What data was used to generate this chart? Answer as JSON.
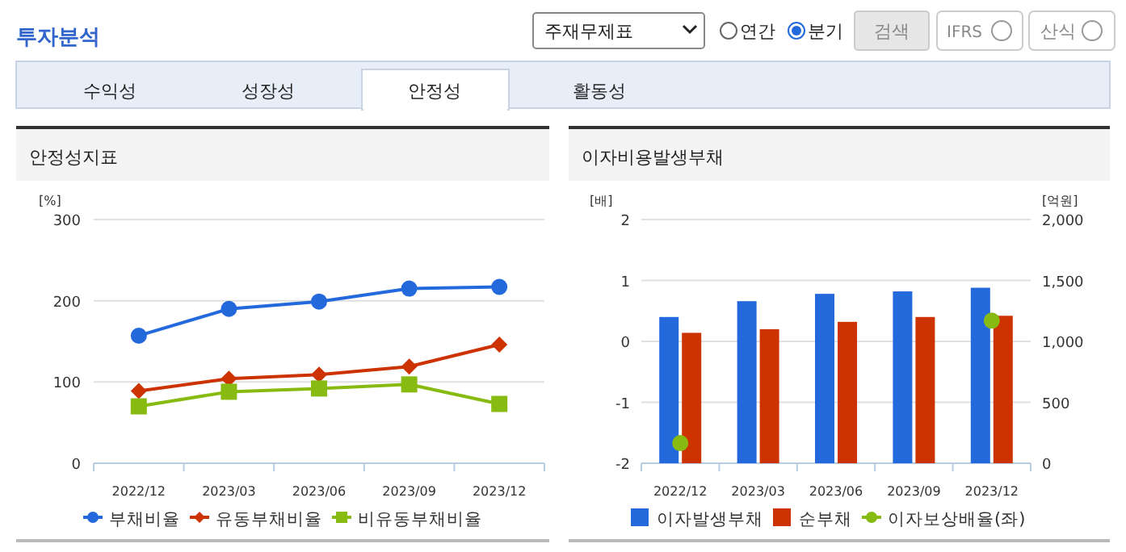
{
  "chart_data": [
    {
      "type": "line",
      "title": "안정성지표",
      "ylabel": "[%]",
      "categories": [
        "2022/12",
        "2023/03",
        "2023/06",
        "2023/09",
        "2023/12"
      ],
      "series": [
        {
          "name": "부채비율",
          "color": "#2469dc",
          "marker": "circle",
          "values": [
            157,
            190,
            199,
            215,
            217
          ]
        },
        {
          "name": "유동부채비율",
          "color": "#cc3300",
          "marker": "diamond",
          "values": [
            89,
            104,
            109,
            119,
            146
          ]
        },
        {
          "name": "비유동부채비율",
          "color": "#88bb11",
          "marker": "square",
          "values": [
            70,
            88,
            92,
            97,
            73
          ]
        }
      ],
      "ylim": [
        0,
        300
      ],
      "yticks": [
        0,
        100,
        200,
        300
      ],
      "grid": "y",
      "legend": "bottom",
      "annotations": [
        "투자분석",
        "주재무제표",
        "연간",
        "분기",
        "검색",
        "IFRS",
        "산식",
        "수익성",
        "성장성",
        "안정성",
        "활동성"
      ]
    },
    {
      "type": "bar",
      "title": "이자비용발생부채",
      "ylabel": "[배]",
      "y2label": "[억원]",
      "categories": [
        "2022/12",
        "2023/03",
        "2023/06",
        "2023/09",
        "2023/12"
      ],
      "series": [
        {
          "name": "이자발생부채",
          "color": "#2469dc",
          "axis": "y2",
          "values": [
            1200,
            1330,
            1390,
            1410,
            1440
          ]
        },
        {
          "name": "순부채",
          "color": "#cc3300",
          "axis": "y2",
          "values": [
            1070,
            1100,
            1160,
            1200,
            1210
          ]
        },
        {
          "name": "이자보상배율(좌)",
          "color": "#88bb11",
          "type": "scatter",
          "marker": "circle",
          "values": [
            -1.67,
            null,
            null,
            null,
            0.34
          ]
        }
      ],
      "ylim": [
        -2,
        2
      ],
      "yticks": [
        -2,
        -1,
        0,
        1,
        2
      ],
      "y2lim": [
        0,
        2000
      ],
      "y2ticks": [
        0,
        500,
        {
          "value": 1000,
          "label": "1,000"
        },
        {
          "value": 1500,
          "label": "1,500"
        },
        {
          "value": 2000,
          "label": "2,000"
        }
      ],
      "grid": "y",
      "legend": "bottom"
    }
  ]
}
